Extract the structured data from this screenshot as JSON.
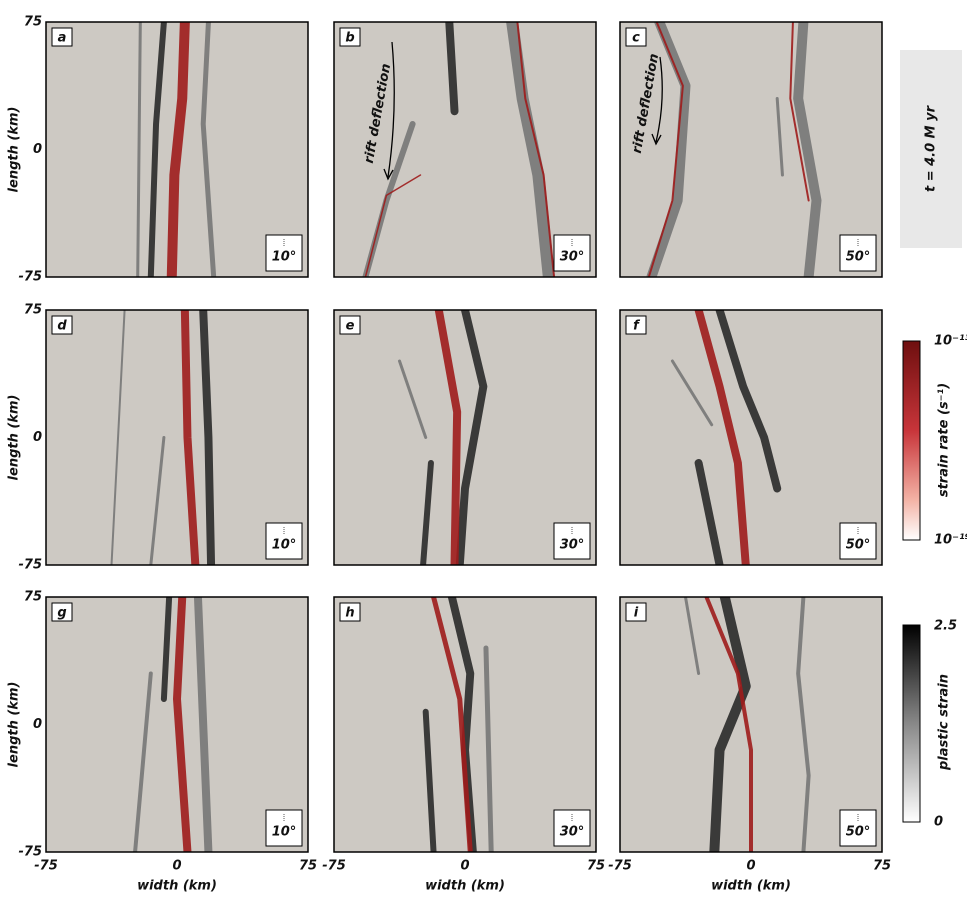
{
  "axes": {
    "y_label": "length (km)",
    "x_label": "width (km)",
    "yticks": [
      "75",
      "0",
      "-75"
    ],
    "xticks": [
      "-75",
      "0",
      "75"
    ]
  },
  "panels": [
    {
      "letter": "a",
      "angle": "10°"
    },
    {
      "letter": "b",
      "angle": "30°",
      "annotation": "rift deflection"
    },
    {
      "letter": "c",
      "angle": "50°",
      "annotation": "rift deflection"
    },
    {
      "letter": "d",
      "angle": "10°"
    },
    {
      "letter": "e",
      "angle": "30°"
    },
    {
      "letter": "f",
      "angle": "50°"
    },
    {
      "letter": "g",
      "angle": "10°"
    },
    {
      "letter": "h",
      "angle": "30°"
    },
    {
      "letter": "i",
      "angle": "50°"
    }
  ],
  "time_label": "t = 4.0 M yr",
  "colorbars": [
    {
      "label": "strain rate (s⁻¹)",
      "max": "10⁻¹³",
      "min": "10⁻¹⁹"
    },
    {
      "label": "plastic strain",
      "max": "2.5",
      "min": "0"
    }
  ]
}
